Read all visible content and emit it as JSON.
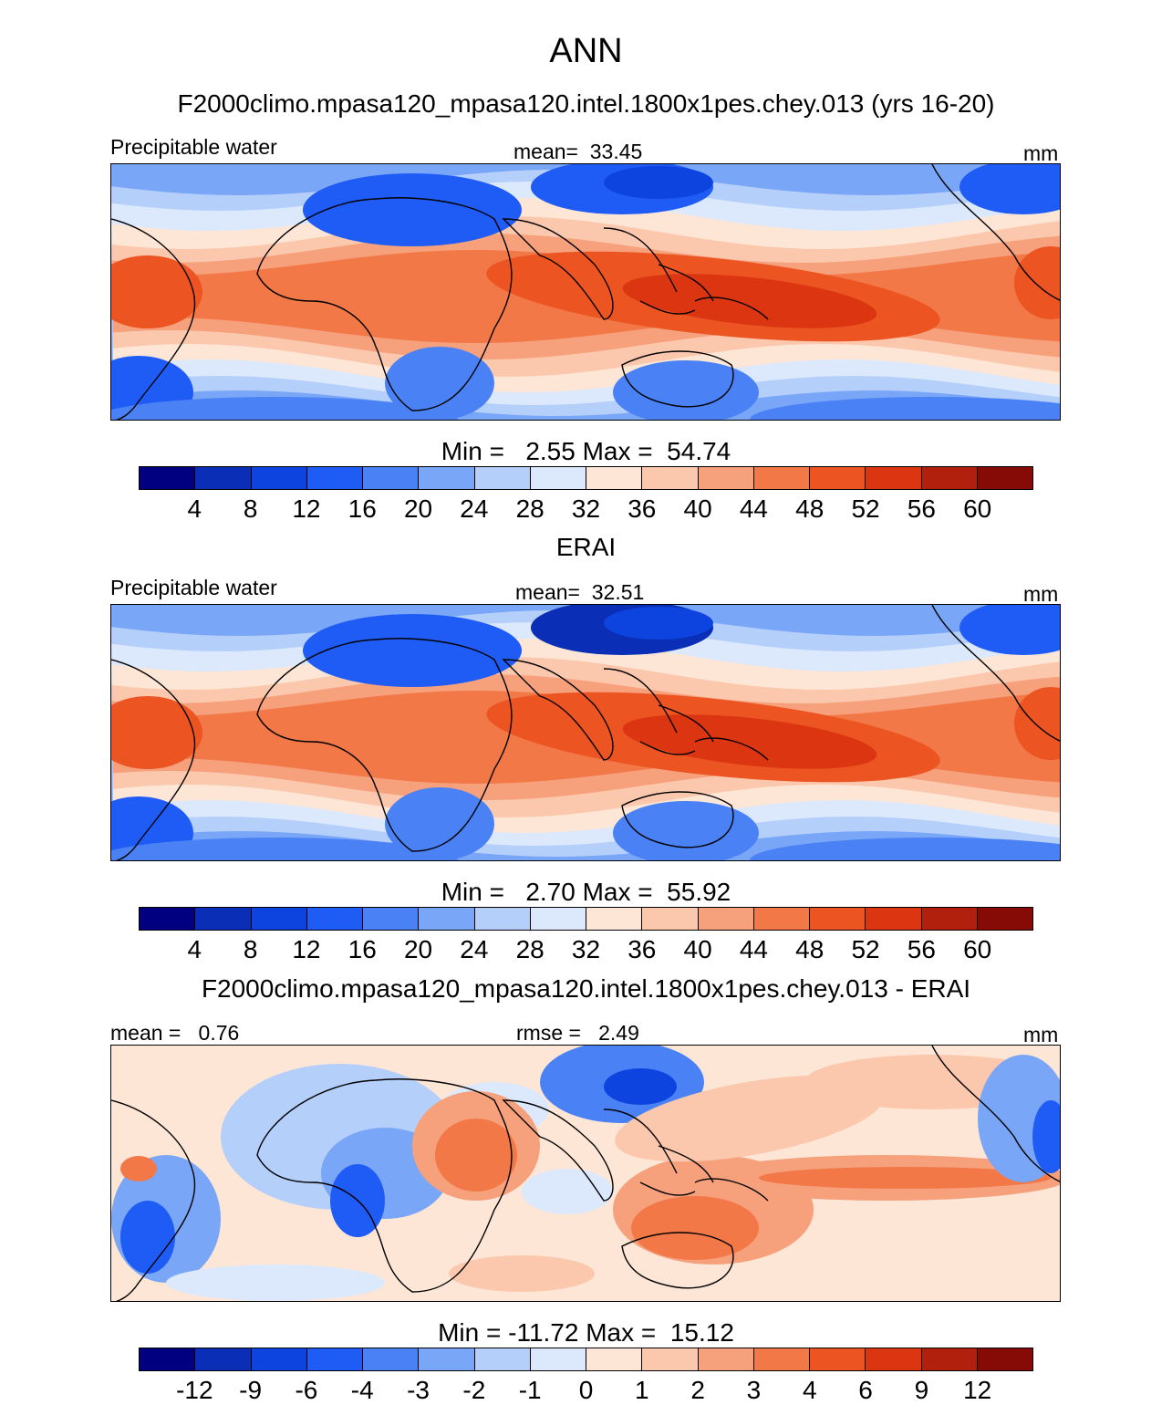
{
  "figure": {
    "title": "ANN",
    "colors": [
      "#000080",
      "#0a2eb5",
      "#0d44e0",
      "#1e5cf5",
      "#4a82f5",
      "#7aa6f7",
      "#b4cffa",
      "#dce8fb",
      "#fde6d6",
      "#fbc8ad",
      "#f6a07c",
      "#f27848",
      "#ec5422",
      "#db3512",
      "#b0200c",
      "#860a06"
    ]
  },
  "chart_data": [
    {
      "type": "heatmap",
      "title": "F2000climo.mpasa120_mpasa120.intel.1800x1pes.chey.013 (yrs 16-20)",
      "left_label": "Precipitable water",
      "center_label": "mean=  33.45",
      "units": "mm",
      "mean": 33.45,
      "min": 2.55,
      "max": 54.74,
      "minmax_text": "Min =   2.55 Max =  54.74",
      "levels": [
        "4",
        "8",
        "12",
        "16",
        "20",
        "24",
        "28",
        "32",
        "36",
        "40",
        "44",
        "48",
        "52",
        "56",
        "60"
      ]
    },
    {
      "type": "heatmap",
      "title": "ERAI",
      "left_label": "Precipitable water",
      "center_label": "mean=  32.51",
      "units": "mm",
      "mean": 32.51,
      "min": 2.7,
      "max": 55.92,
      "minmax_text": "Min =   2.70 Max =  55.92",
      "levels": [
        "4",
        "8",
        "12",
        "16",
        "20",
        "24",
        "28",
        "32",
        "36",
        "40",
        "44",
        "48",
        "52",
        "56",
        "60"
      ]
    },
    {
      "type": "heatmap",
      "title": "F2000climo.mpasa120_mpasa120.intel.1800x1pes.chey.013 - ERAI",
      "left_label": "mean =   0.76",
      "center_label": "rmse =   2.49",
      "units": "mm",
      "mean": 0.76,
      "rmse": 2.49,
      "min": -11.72,
      "max": 15.12,
      "minmax_text": "Min = -11.72 Max =  15.12",
      "levels": [
        "-12",
        "-9",
        "-6",
        "-4",
        "-3",
        "-2",
        "-1",
        "0",
        "1",
        "2",
        "3",
        "4",
        "6",
        "9",
        "12"
      ]
    }
  ]
}
